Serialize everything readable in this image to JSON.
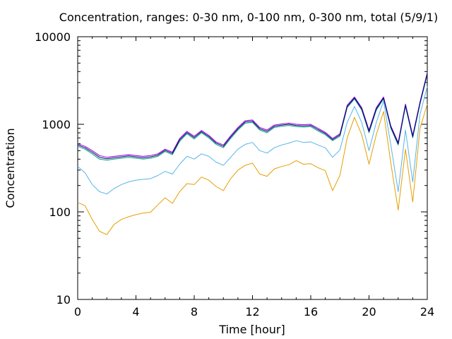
{
  "chart_data": {
    "type": "line",
    "title": "Concentration, ranges: 0-30 nm, 0-100 nm, 0-300 nm, total (5/9/1)",
    "xlabel": "Time [hour]",
    "ylabel": "Concentration",
    "xlim": [
      0,
      24
    ],
    "ylim": [
      10,
      10000
    ],
    "yscale": "log",
    "grid": false,
    "legend": "none",
    "x_ticks": [
      "0",
      "4",
      "8",
      "12",
      "16",
      "20",
      "24"
    ],
    "y_ticks": [
      "10",
      "100",
      "1000",
      "10000"
    ],
    "x": [
      0,
      0.5,
      1,
      1.5,
      2,
      2.5,
      3,
      3.5,
      4,
      4.5,
      5,
      5.5,
      6,
      6.5,
      7,
      7.5,
      8,
      8.5,
      9,
      9.5,
      10,
      10.5,
      11,
      11.5,
      12,
      12.5,
      13,
      13.5,
      14,
      14.5,
      15,
      15.5,
      16,
      16.5,
      17,
      17.5,
      18,
      18.5,
      19,
      19.5,
      20,
      20.5,
      21,
      21.5,
      22,
      22.5,
      23,
      23.5,
      24
    ],
    "series": [
      {
        "color": "#e59f00",
        "values": [
          128,
          118,
          82,
          60,
          55,
          72,
          82,
          88,
          93,
          97,
          99,
          120,
          145,
          125,
          170,
          210,
          205,
          250,
          230,
          195,
          175,
          240,
          300,
          340,
          360,
          270,
          255,
          310,
          330,
          345,
          385,
          350,
          355,
          320,
          295,
          175,
          260,
          700,
          1200,
          760,
          350,
          760,
          1400,
          360,
          105,
          520,
          130,
          900,
          1700
        ]
      },
      {
        "color": "#56b4e9",
        "values": [
          330,
          280,
          205,
          170,
          160,
          185,
          205,
          220,
          230,
          235,
          240,
          260,
          290,
          270,
          350,
          430,
          400,
          460,
          430,
          370,
          340,
          420,
          520,
          590,
          620,
          500,
          470,
          540,
          580,
          610,
          650,
          620,
          630,
          580,
          540,
          420,
          510,
          1050,
          1600,
          1050,
          500,
          1050,
          1850,
          580,
          170,
          860,
          220,
          1300,
          2700
        ]
      },
      {
        "color": "#009e73",
        "values": [
          560,
          520,
          460,
          400,
          390,
          400,
          410,
          420,
          410,
          400,
          410,
          430,
          490,
          450,
          640,
          780,
          680,
          800,
          700,
          590,
          540,
          690,
          860,
          1030,
          1050,
          860,
          800,
          920,
          950,
          970,
          940,
          930,
          940,
          840,
          760,
          650,
          730,
          1550,
          1950,
          1450,
          800,
          1450,
          1950,
          900,
          580,
          1600,
          700,
          1700,
          3700
        ]
      },
      {
        "color": "#9400d3",
        "values": [
          600,
          560,
          500,
          440,
          420,
          430,
          440,
          450,
          440,
          430,
          440,
          460,
          520,
          480,
          690,
          830,
          730,
          850,
          750,
          630,
          580,
          740,
          920,
          1100,
          1120,
          920,
          860,
          980,
          1010,
          1030,
          1000,
          990,
          1000,
          900,
          810,
          690,
          780,
          1650,
          2050,
          1550,
          860,
          1550,
          2050,
          960,
          620,
          1700,
          750,
          1800,
          3900
        ]
      },
      {
        "color": "#000080",
        "values": [
          580,
          540,
          480,
          420,
          405,
          415,
          425,
          435,
          425,
          415,
          425,
          445,
          505,
          465,
          665,
          805,
          705,
          825,
          725,
          610,
          560,
          715,
          890,
          1065,
          1085,
          890,
          830,
          950,
          980,
          1000,
          970,
          960,
          970,
          870,
          785,
          670,
          755,
          1600,
          2000,
          1500,
          830,
          1500,
          2000,
          930,
          600,
          1650,
          725,
          1750,
          3800
        ]
      }
    ]
  }
}
